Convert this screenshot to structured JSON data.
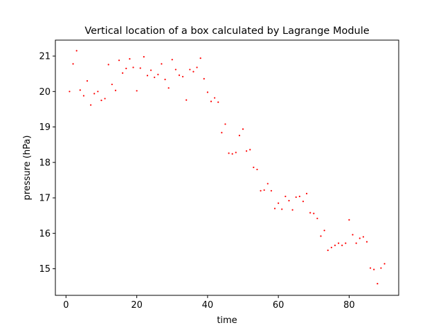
{
  "chart_data": {
    "type": "scatter",
    "title": "Vertical location of a box calculated by Lagrange Module",
    "xlabel": "time",
    "ylabel": "pressure (hPa)",
    "xlim": [
      -3,
      94
    ],
    "ylim": [
      14.25,
      21.45
    ],
    "xticks": [
      0,
      20,
      40,
      60,
      80
    ],
    "xtick_labels": [
      "0",
      "20",
      "40",
      "60",
      "80"
    ],
    "yticks": [
      15,
      16,
      17,
      18,
      19,
      20,
      21
    ],
    "ytick_labels": [
      "15",
      "16",
      "17",
      "18",
      "19",
      "20",
      "21"
    ],
    "grid": false,
    "legend": "none",
    "marker_color": "#ff0000",
    "series": [
      {
        "x": [
          1,
          2,
          3,
          4,
          5,
          6,
          7,
          8,
          9,
          10,
          11,
          12,
          13,
          14,
          15,
          16,
          17,
          18,
          19,
          20,
          21,
          22,
          23,
          24,
          25,
          26,
          27,
          28,
          29,
          30,
          31,
          32,
          33,
          34,
          35,
          36,
          37,
          38,
          39,
          40,
          41,
          42,
          43,
          44,
          45,
          46,
          47,
          48,
          49,
          50,
          51,
          52,
          53,
          54,
          55,
          56,
          57,
          58,
          59,
          60,
          61,
          62,
          63,
          64,
          65,
          66,
          67,
          68,
          69,
          70,
          71,
          72,
          73,
          74,
          75,
          76,
          77,
          78,
          79,
          80,
          81,
          82,
          83,
          84,
          85,
          86,
          87,
          88,
          89,
          90
        ],
        "y": [
          20.0,
          20.78,
          21.15,
          20.04,
          19.88,
          20.3,
          19.62,
          19.94,
          20.0,
          19.75,
          19.8,
          20.76,
          20.2,
          20.03,
          20.88,
          20.52,
          20.65,
          20.92,
          20.68,
          20.02,
          20.66,
          20.98,
          20.45,
          20.6,
          20.4,
          20.48,
          20.78,
          20.34,
          20.1,
          20.9,
          20.62,
          20.46,
          20.42,
          19.76,
          20.62,
          20.56,
          20.68,
          20.94,
          20.36,
          19.98,
          19.72,
          19.82,
          19.7,
          18.84,
          19.08,
          18.26,
          18.24,
          18.28,
          18.76,
          18.94,
          18.32,
          18.36,
          17.86,
          17.8,
          17.2,
          17.22,
          17.4,
          17.2,
          16.7,
          16.85,
          16.68,
          17.04,
          16.92,
          16.66,
          17.02,
          17.04,
          16.9,
          17.12,
          16.58,
          16.56,
          16.42,
          15.92,
          16.08,
          15.52,
          15.6,
          15.66,
          15.72,
          15.66,
          15.72,
          16.38,
          15.96,
          15.72,
          15.86,
          15.9,
          15.76,
          15.02,
          14.98,
          14.58,
          15.02,
          15.14
        ]
      }
    ]
  }
}
